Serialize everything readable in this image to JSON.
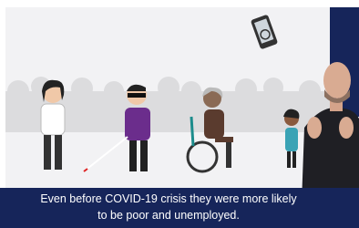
{
  "caption": {
    "lines": [
      "Even before COVID-19 crisis they were more likely",
      "to be poor and unemployed."
    ]
  }
}
